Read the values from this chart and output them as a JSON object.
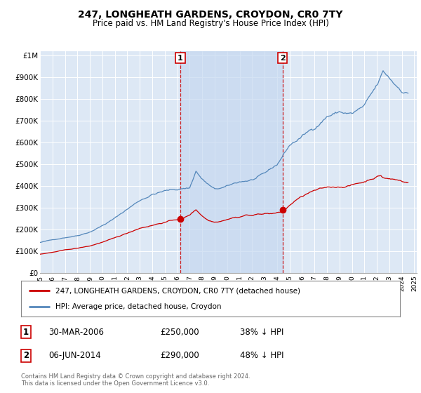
{
  "title": "247, LONGHEATH GARDENS, CROYDON, CR0 7TY",
  "subtitle": "Price paid vs. HM Land Registry's House Price Index (HPI)",
  "legend_label_red": "247, LONGHEATH GARDENS, CROYDON, CR0 7TY (detached house)",
  "legend_label_blue": "HPI: Average price, detached house, Croydon",
  "annotation1_date": "30-MAR-2006",
  "annotation1_price": "£250,000",
  "annotation1_hpi": "38% ↓ HPI",
  "annotation1_year": 2006.25,
  "annotation1_value_red": 250000,
  "annotation2_date": "06-JUN-2014",
  "annotation2_price": "£290,000",
  "annotation2_hpi": "48% ↓ HPI",
  "annotation2_year": 2014.44,
  "annotation2_value_red": 290000,
  "ylabel_ticks": [
    "£0",
    "£100K",
    "£200K",
    "£300K",
    "£400K",
    "£500K",
    "£600K",
    "£700K",
    "£800K",
    "£900K",
    "£1M"
  ],
  "ytick_values": [
    0,
    100000,
    200000,
    300000,
    400000,
    500000,
    600000,
    700000,
    800000,
    900000,
    1000000
  ],
  "ylim": [
    0,
    1020000
  ],
  "background_color": "#dde8f5",
  "shaded_color": "#c5d8f0",
  "red_color": "#cc0000",
  "blue_color": "#5588bb",
  "footer_text": "Contains HM Land Registry data © Crown copyright and database right 2024.\nThis data is licensed under the Open Government Licence v3.0."
}
